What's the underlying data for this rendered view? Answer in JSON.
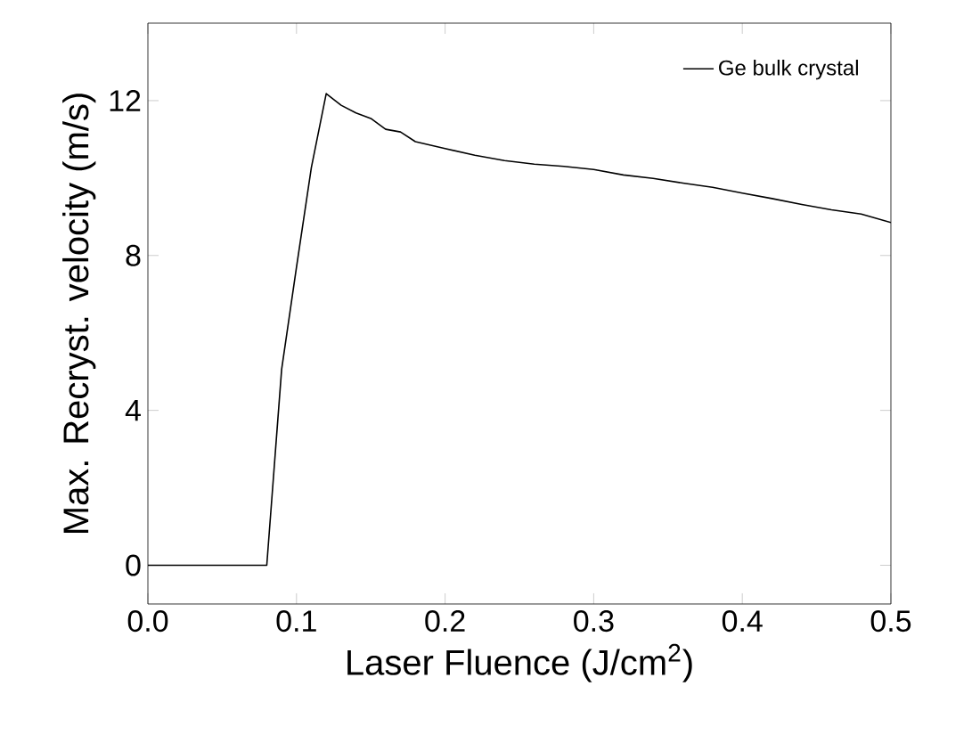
{
  "chart_data": {
    "type": "line",
    "xlabel": "Laser Fluence (J/cm$^{2}$)",
    "ylabel": "Max. Recryst. velocity (m/s)",
    "xlim": [
      0,
      0.5
    ],
    "ylim": [
      -1,
      14
    ],
    "xticks": [
      {
        "value": 0,
        "label": "0.0"
      },
      0.1,
      0.2,
      0.3,
      0.4,
      0.5
    ],
    "yticks": [
      0,
      4,
      8,
      12
    ],
    "legend": "top right",
    "grid": false,
    "marker": "none",
    "line_style": "solid",
    "series": [
      {
        "name": "Ge bulk crystal",
        "color": "#000000",
        "x": [
          0,
          0.08,
          0.09,
          0.1,
          0.11,
          0.12,
          0.13,
          0.14,
          0.15,
          0.16,
          0.17,
          0.18,
          0.19,
          0.2,
          0.22,
          0.24,
          0.26,
          0.28,
          0.3,
          0.32,
          0.34,
          0.36,
          0.38,
          0.4,
          0.42,
          0.44,
          0.46,
          0.48,
          0.5
        ],
        "values": [
          0,
          0,
          5.06,
          7.7,
          10.27,
          12.18,
          11.88,
          11.68,
          11.54,
          11.26,
          11.19,
          10.94,
          10.85,
          10.76,
          10.59,
          10.45,
          10.36,
          10.3,
          10.22,
          10.08,
          9.99,
          9.87,
          9.76,
          9.61,
          9.47,
          9.32,
          9.18,
          9.07,
          8.85
        ]
      }
    ]
  }
}
